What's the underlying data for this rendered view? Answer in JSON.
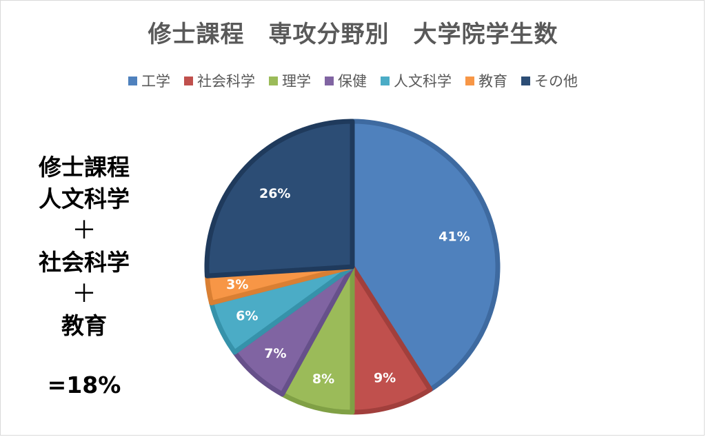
{
  "chart_data": {
    "type": "pie",
    "title": "修士課程　専攻分野別　大学院学生数",
    "legend_position": "top",
    "categories": [
      "工学",
      "社会科学",
      "理学",
      "保健",
      "人文科学",
      "教育",
      "その他"
    ],
    "values": [
      41,
      9,
      8,
      7,
      6,
      3,
      26
    ],
    "labels": [
      "41%",
      "9%",
      "8%",
      "7%",
      "6%",
      "3%",
      "26%"
    ],
    "colors": [
      "#4f81bd",
      "#c0504d",
      "#9bbb59",
      "#8064a2",
      "#4bacc6",
      "#f79646",
      "#2c4d75"
    ],
    "edge_colors": [
      "#3e6aa0",
      "#a13f3c",
      "#80a045",
      "#66508a",
      "#3692aa",
      "#d97f33",
      "#1f3a5c"
    ]
  },
  "annotation": {
    "line1": "修士課程",
    "line2": "人文科学",
    "plus1": "＋",
    "line3": "社会科学",
    "plus2": "＋",
    "line4": "教育",
    "result": "=18%"
  }
}
